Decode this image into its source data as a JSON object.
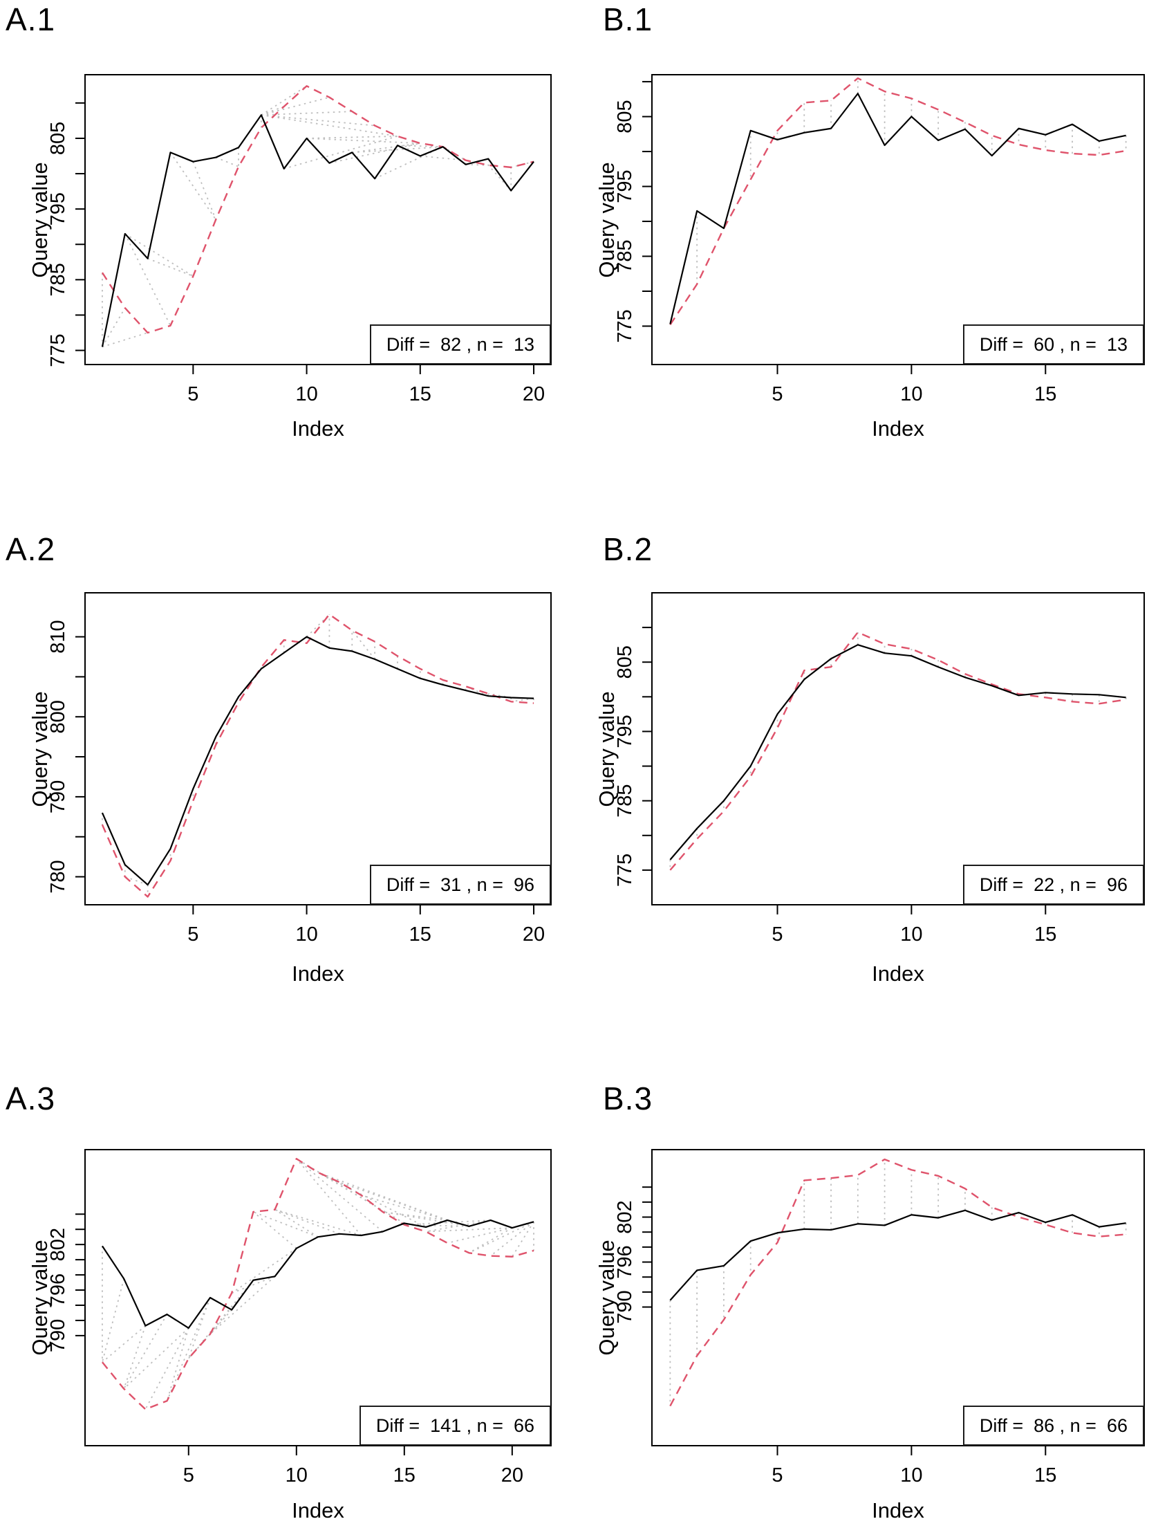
{
  "figure": {
    "background": "#ffffff",
    "colors": {
      "query_line": "#000000",
      "reference_line": "#DF536B",
      "match_line": "#BEBEBE",
      "axis": "#000000"
    },
    "line_styles": {
      "query_line": "solid",
      "reference_line": "dashed",
      "match_line": "dotted"
    }
  },
  "chart_data": [
    {
      "type": "line",
      "title": "A.1",
      "xlabel": "Index",
      "ylabel": "Query value",
      "x_ticks": [
        5,
        10,
        15,
        20
      ],
      "y_ticks_labeled": [
        775,
        785,
        795,
        805
      ],
      "y_ticks_minor": [
        780,
        790,
        800,
        810
      ],
      "ylim": [
        773.0,
        814.0
      ],
      "alignment_style": "warped",
      "diff": 82,
      "n": 13,
      "legend_label": "Diff =  82 , n =  13",
      "series": {
        "query": [
          775.5,
          791.5,
          788.0,
          803.0,
          801.7,
          802.3,
          803.7,
          808.3,
          800.7,
          805.0,
          801.5,
          803.0,
          799.3,
          804.0,
          802.5,
          803.8,
          801.3,
          802.1,
          797.6,
          801.7
        ],
        "reference": [
          786.0,
          781.0,
          777.5,
          778.5,
          785.5,
          793.5,
          801.0,
          806.5,
          809.5,
          812.4,
          810.8,
          808.8,
          806.8,
          805.3,
          804.3,
          803.8,
          801.9,
          801.2,
          800.9,
          801.7
        ]
      },
      "matches": [
        [
          1,
          1
        ],
        [
          1,
          2
        ],
        [
          1,
          3
        ],
        [
          2,
          4
        ],
        [
          2,
          5
        ],
        [
          3,
          5
        ],
        [
          4,
          6
        ],
        [
          5,
          6
        ],
        [
          6,
          7
        ],
        [
          7,
          7
        ],
        [
          8,
          8
        ],
        [
          8,
          9
        ],
        [
          8,
          10
        ],
        [
          8,
          11
        ],
        [
          8,
          12
        ],
        [
          8,
          13
        ],
        [
          8,
          14
        ],
        [
          9,
          14
        ],
        [
          10,
          14
        ],
        [
          10,
          15
        ],
        [
          11,
          15
        ],
        [
          12,
          15
        ],
        [
          12,
          16
        ],
        [
          13,
          16
        ],
        [
          14,
          16
        ],
        [
          15,
          16
        ],
        [
          15,
          17
        ],
        [
          16,
          17
        ],
        [
          17,
          17
        ],
        [
          17,
          18
        ],
        [
          18,
          18
        ],
        [
          19,
          18
        ],
        [
          19,
          19
        ],
        [
          20,
          19
        ],
        [
          20,
          20
        ]
      ]
    },
    {
      "type": "line",
      "title": "B.1",
      "xlabel": "Index",
      "ylabel": "Query value",
      "x_ticks": [
        5,
        10,
        15
      ],
      "y_ticks_labeled": [
        775,
        785,
        795,
        805
      ],
      "y_ticks_minor": [
        780,
        790,
        800,
        810
      ],
      "ylim": [
        769.5,
        811.0
      ],
      "alignment_style": "vertical",
      "diff": 60,
      "n": 13,
      "legend_label": "Diff =  60 , n =  13",
      "series": {
        "query": [
          775.3,
          791.5,
          789.0,
          803.0,
          801.7,
          802.7,
          803.3,
          808.3,
          800.9,
          805.0,
          801.6,
          803.2,
          799.4,
          803.3,
          802.4,
          803.9,
          801.5,
          802.3
        ],
        "reference": [
          775.2,
          781.0,
          789.0,
          796.0,
          803.0,
          807.0,
          807.3,
          810.5,
          808.6,
          807.6,
          806.0,
          804.2,
          802.3,
          801.0,
          800.2,
          799.7,
          799.5,
          800.1
        ]
      },
      "matches": [
        [
          1,
          1
        ],
        [
          2,
          2
        ],
        [
          3,
          3
        ],
        [
          4,
          4
        ],
        [
          5,
          5
        ],
        [
          6,
          6
        ],
        [
          7,
          7
        ],
        [
          8,
          8
        ],
        [
          9,
          9
        ],
        [
          10,
          10
        ],
        [
          11,
          11
        ],
        [
          12,
          12
        ],
        [
          13,
          13
        ],
        [
          14,
          14
        ],
        [
          15,
          15
        ],
        [
          16,
          16
        ],
        [
          17,
          17
        ],
        [
          18,
          18
        ]
      ]
    },
    {
      "type": "line",
      "title": "A.2",
      "xlabel": "Index",
      "ylabel": "Query value",
      "x_ticks": [
        5,
        10,
        15,
        20
      ],
      "y_ticks_labeled": [
        780,
        790,
        800,
        810
      ],
      "y_ticks_minor": [
        785,
        795,
        805
      ],
      "ylim": [
        776.5,
        815.5
      ],
      "alignment_style": "warped",
      "diff": 31,
      "n": 96,
      "legend_label": "Diff =  31 , n =  96",
      "series": {
        "query": [
          788.0,
          781.5,
          779.0,
          783.5,
          791.0,
          797.5,
          802.5,
          806.0,
          808.0,
          810.0,
          808.6,
          808.2,
          807.2,
          806.0,
          804.8,
          804.0,
          803.3,
          802.6,
          802.4,
          802.3
        ],
        "reference": [
          786.5,
          780.0,
          777.5,
          782.0,
          789.5,
          796.5,
          801.8,
          806.2,
          809.6,
          809.2,
          812.8,
          810.8,
          809.4,
          807.6,
          806.0,
          804.6,
          803.8,
          802.9,
          801.9,
          801.7
        ]
      },
      "matches": [
        [
          1,
          1
        ],
        [
          2,
          2
        ],
        [
          3,
          2
        ],
        [
          3,
          3
        ],
        [
          4,
          4
        ],
        [
          5,
          5
        ],
        [
          6,
          6
        ],
        [
          7,
          7
        ],
        [
          8,
          8
        ],
        [
          9,
          9
        ],
        [
          10,
          10
        ],
        [
          10,
          11
        ],
        [
          11,
          11
        ],
        [
          12,
          12
        ],
        [
          13,
          12
        ],
        [
          13,
          13
        ],
        [
          14,
          14
        ],
        [
          15,
          15
        ],
        [
          16,
          16
        ],
        [
          17,
          17
        ],
        [
          18,
          17
        ],
        [
          18,
          18
        ],
        [
          19,
          18
        ],
        [
          19,
          19
        ],
        [
          20,
          19
        ],
        [
          20,
          20
        ]
      ]
    },
    {
      "type": "line",
      "title": "B.2",
      "xlabel": "Index",
      "ylabel": "Query value",
      "x_ticks": [
        5,
        10,
        15
      ],
      "y_ticks_labeled": [
        775,
        785,
        795,
        805
      ],
      "y_ticks_minor": [
        780,
        790,
        800,
        810
      ],
      "ylim": [
        770.0,
        815.0
      ],
      "alignment_style": "vertical",
      "diff": 22,
      "n": 96,
      "legend_label": "Diff =  22 , n =  96",
      "series": {
        "query": [
          776.5,
          781.0,
          785.0,
          790.0,
          797.5,
          802.5,
          805.5,
          807.5,
          806.3,
          805.9,
          804.3,
          802.8,
          801.6,
          800.2,
          800.6,
          800.4,
          800.3,
          799.9
        ],
        "reference": [
          775.0,
          779.5,
          783.5,
          788.5,
          795.5,
          803.8,
          804.3,
          809.3,
          807.6,
          806.9,
          805.3,
          803.3,
          801.8,
          800.4,
          799.9,
          799.3,
          799.0,
          799.6
        ]
      },
      "matches": [
        [
          1,
          1
        ],
        [
          2,
          2
        ],
        [
          3,
          3
        ],
        [
          4,
          4
        ],
        [
          5,
          5
        ],
        [
          6,
          6
        ],
        [
          7,
          7
        ],
        [
          8,
          8
        ],
        [
          9,
          9
        ],
        [
          10,
          10
        ],
        [
          11,
          11
        ],
        [
          12,
          12
        ],
        [
          13,
          13
        ],
        [
          14,
          14
        ],
        [
          15,
          15
        ],
        [
          16,
          16
        ],
        [
          17,
          17
        ],
        [
          18,
          18
        ]
      ]
    },
    {
      "type": "line",
      "title": "A.3",
      "xlabel": "Index",
      "ylabel": "Query value",
      "x_ticks": [
        5,
        10,
        15,
        20
      ],
      "y_ticks_labeled": [
        790,
        796,
        802
      ],
      "y_ticks_minor": [
        792,
        794,
        798,
        800,
        804,
        806
      ],
      "ylim": [
        775.5,
        814.5
      ],
      "alignment_style": "warped",
      "diff": 141,
      "n": 66,
      "legend_label": "Diff =  141 , n =  66",
      "series": {
        "query": [
          801.8,
          797.5,
          791.3,
          792.8,
          791.0,
          795.0,
          793.4,
          797.3,
          797.8,
          801.5,
          803.0,
          803.4,
          803.2,
          803.7,
          804.8,
          804.3,
          805.2,
          804.4,
          805.2,
          804.2,
          805.0
        ],
        "reference": [
          786.5,
          783.0,
          780.3,
          781.4,
          787.0,
          790.2,
          795.6,
          806.3,
          806.6,
          813.3,
          811.5,
          810.2,
          808.5,
          806.3,
          804.6,
          803.7,
          802.2,
          800.9,
          800.5,
          800.4,
          801.2
        ]
      },
      "matches": [
        [
          1,
          1
        ],
        [
          2,
          1
        ],
        [
          3,
          1
        ],
        [
          3,
          2
        ],
        [
          4,
          2
        ],
        [
          5,
          2
        ],
        [
          5,
          3
        ],
        [
          5,
          4
        ],
        [
          6,
          4
        ],
        [
          6,
          5
        ],
        [
          7,
          5
        ],
        [
          8,
          5
        ],
        [
          8,
          6
        ],
        [
          9,
          6
        ],
        [
          9,
          7
        ],
        [
          10,
          7
        ],
        [
          10,
          8
        ],
        [
          11,
          8
        ],
        [
          11,
          9
        ],
        [
          12,
          9
        ],
        [
          13,
          9
        ],
        [
          13,
          10
        ],
        [
          14,
          10
        ],
        [
          15,
          10
        ],
        [
          15,
          11
        ],
        [
          16,
          11
        ],
        [
          17,
          11
        ],
        [
          17,
          12
        ],
        [
          17,
          13
        ],
        [
          17,
          14
        ],
        [
          18,
          14
        ],
        [
          18,
          15
        ],
        [
          19,
          15
        ],
        [
          19,
          16
        ],
        [
          20,
          16
        ],
        [
          20,
          17
        ],
        [
          20,
          18
        ],
        [
          21,
          18
        ],
        [
          21,
          19
        ],
        [
          21,
          20
        ],
        [
          21,
          21
        ]
      ]
    },
    {
      "type": "line",
      "title": "B.3",
      "xlabel": "Index",
      "ylabel": "Query value",
      "x_ticks": [
        5,
        10,
        15
      ],
      "y_ticks_labeled": [
        790,
        796,
        802
      ],
      "y_ticks_minor": [
        792,
        794,
        798,
        800,
        804,
        806
      ],
      "ylim": [
        771.5,
        811.0
      ],
      "alignment_style": "vertical",
      "diff": 86,
      "n": 66,
      "legend_label": "Diff =  86 , n =  66",
      "series": {
        "query": [
          790.9,
          794.9,
          795.5,
          798.8,
          799.9,
          800.4,
          800.3,
          801.1,
          800.9,
          802.3,
          801.9,
          802.9,
          801.6,
          802.6,
          801.3,
          802.3,
          800.7,
          801.2
        ],
        "reference": [
          776.8,
          783.5,
          788.3,
          794.3,
          798.6,
          806.9,
          807.2,
          807.6,
          809.7,
          808.3,
          807.5,
          805.8,
          803.3,
          802.0,
          801.0,
          799.9,
          799.4,
          799.7
        ]
      },
      "matches": [
        [
          1,
          1
        ],
        [
          2,
          2
        ],
        [
          3,
          3
        ],
        [
          4,
          4
        ],
        [
          5,
          5
        ],
        [
          6,
          6
        ],
        [
          7,
          7
        ],
        [
          8,
          8
        ],
        [
          9,
          9
        ],
        [
          10,
          10
        ],
        [
          11,
          11
        ],
        [
          12,
          12
        ],
        [
          13,
          13
        ],
        [
          14,
          14
        ],
        [
          15,
          15
        ],
        [
          16,
          16
        ],
        [
          17,
          17
        ],
        [
          18,
          18
        ]
      ]
    }
  ]
}
